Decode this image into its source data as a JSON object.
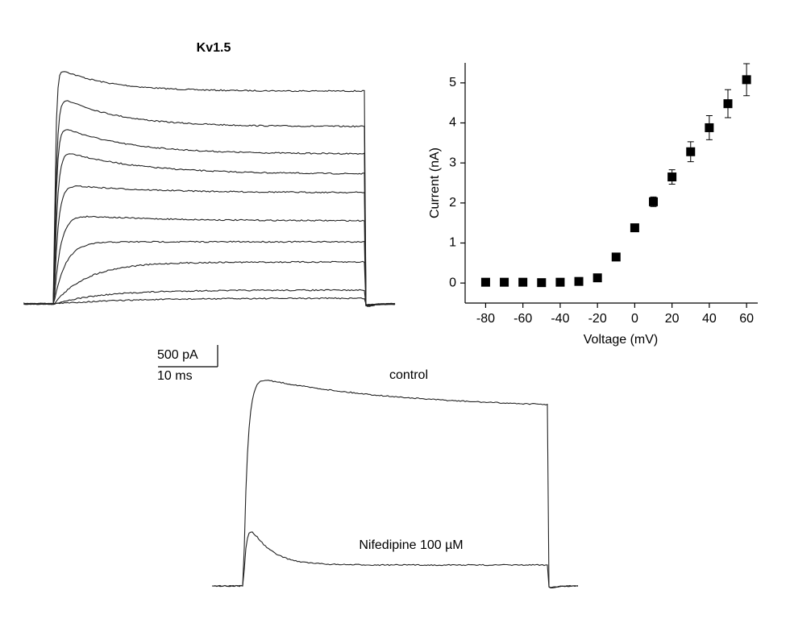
{
  "chart_data": {
    "type": "scatter",
    "x_label": "Voltage (mV)",
    "y_label": "Current (nA)",
    "x": [
      -80,
      -70,
      -60,
      -50,
      -40,
      -30,
      -20,
      -10,
      0,
      10,
      20,
      30,
      40,
      50,
      60
    ],
    "values": [
      0.02,
      0.02,
      0.02,
      0.01,
      0.02,
      0.04,
      0.13,
      0.65,
      1.38,
      2.03,
      2.65,
      3.28,
      3.88,
      4.48,
      5.08
    ],
    "errors": [
      0.01,
      0.01,
      0.01,
      0.01,
      0.01,
      0.02,
      0.03,
      0.05,
      0.07,
      0.12,
      0.18,
      0.25,
      0.3,
      0.35,
      0.4
    ],
    "color": "#000000",
    "xlim": [
      -91,
      66
    ],
    "xticks": [
      -80,
      -60,
      -40,
      -20,
      0,
      20,
      40,
      60
    ],
    "ylim": [
      -0.5,
      5.5
    ],
    "yticks": [
      0,
      1,
      2,
      3,
      4,
      5
    ]
  },
  "traces": {
    "title": "Kv1.5",
    "scale_y": "500 pA",
    "scale_x": "10 ms",
    "labels": [
      "control",
      "Nifedipine 100 µM"
    ]
  }
}
